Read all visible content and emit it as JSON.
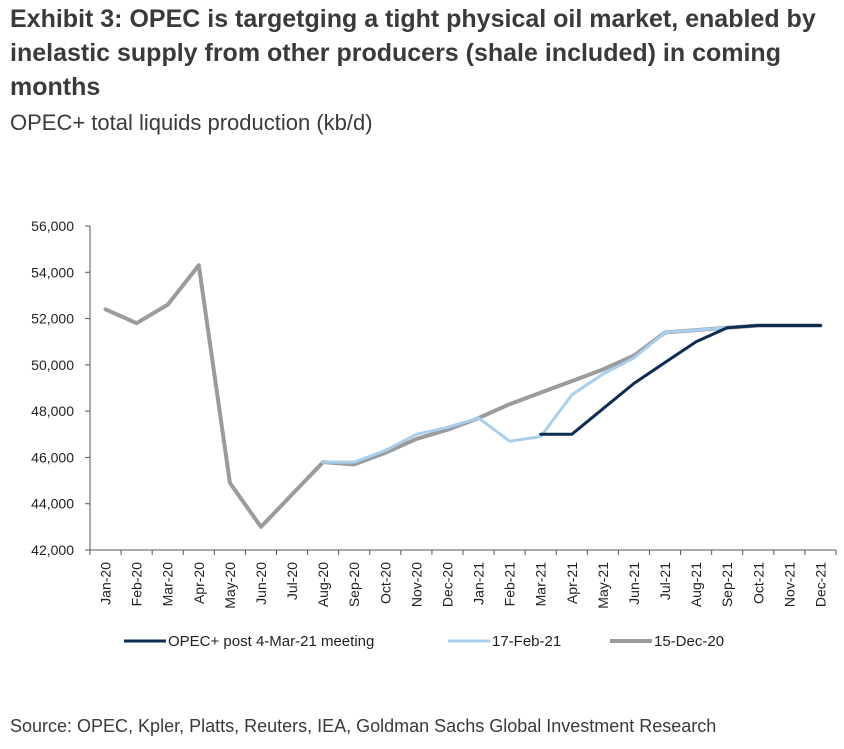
{
  "title": "Exhibit 3: OPEC is targetging a tight physical oil market, enabled by inelastic supply from other producers (shale included) in coming months",
  "subtitle": "OPEC+ total liquids production (kb/d)",
  "source": "Source: OPEC, Kpler, Platts, Reuters, IEA, Goldman Sachs Global Investment Research",
  "chart_data": {
    "type": "line",
    "categories": [
      "Jan-20",
      "Feb-20",
      "Mar-20",
      "Apr-20",
      "May-20",
      "Jun-20",
      "Jul-20",
      "Aug-20",
      "Sep-20",
      "Oct-20",
      "Nov-20",
      "Dec-20",
      "Jan-21",
      "Feb-21",
      "Mar-21",
      "Apr-21",
      "May-21",
      "Jun-21",
      "Jul-21",
      "Aug-21",
      "Sep-21",
      "Oct-21",
      "Nov-21",
      "Dec-21"
    ],
    "y_ticks": [
      "42,000",
      "44,000",
      "46,000",
      "48,000",
      "50,000",
      "52,000",
      "54,000",
      "56,000"
    ],
    "ylim": [
      42000,
      56000
    ],
    "grid": false,
    "legend_position": "bottom",
    "series": [
      {
        "name": "OPEC+ post 4-Mar-21 meeting",
        "color": "#0d2c54",
        "values": [
          null,
          null,
          null,
          null,
          null,
          null,
          null,
          null,
          null,
          null,
          null,
          null,
          null,
          null,
          47000,
          47000,
          48100,
          49200,
          50100,
          51000,
          51600,
          51700,
          51700,
          51700
        ]
      },
      {
        "name": "17-Feb-21",
        "color": "#a9cfee",
        "values": [
          null,
          null,
          null,
          null,
          null,
          null,
          null,
          45800,
          45800,
          46300,
          47000,
          47300,
          47700,
          46700,
          46900,
          48700,
          49600,
          50300,
          51400,
          51500,
          51600,
          51700,
          51700,
          51700
        ]
      },
      {
        "name": "15-Dec-20",
        "color": "#9b9b9b",
        "values": [
          52400,
          51800,
          52600,
          54300,
          44900,
          43000,
          44400,
          45800,
          45700,
          46200,
          46800,
          47200,
          47700,
          48300,
          48800,
          49300,
          49800,
          50400,
          51400,
          51500,
          51600,
          51700,
          51700,
          51700
        ]
      }
    ]
  }
}
